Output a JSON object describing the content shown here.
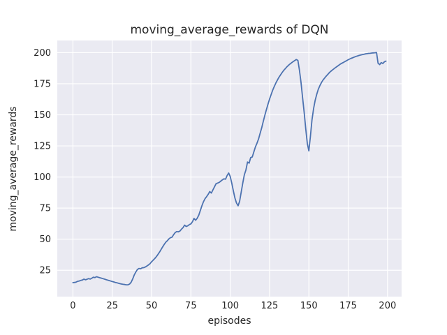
{
  "chart_data": {
    "type": "line",
    "title": "moving_average_rewards of DQN",
    "xlabel": "episodes",
    "ylabel": "moving_average_rewards",
    "xlim": [
      -9.95,
      208.95
    ],
    "ylim": [
      3.8,
      209.8
    ],
    "xticks": [
      0,
      25,
      50,
      75,
      100,
      125,
      150,
      175,
      200
    ],
    "yticks": [
      25,
      50,
      75,
      100,
      125,
      150,
      175,
      200
    ],
    "grid": true,
    "legend": "none",
    "style": {
      "line_color": "#4c72b0",
      "plot_background": "#eaeaf2",
      "grid_color": "#ffffff",
      "text_color": "#262626",
      "figure_background": "#ffffff",
      "line_width": 1.8
    },
    "series": [
      {
        "name": "moving_average_rewards",
        "points": [
          [
            0,
            15
          ],
          [
            1,
            15.2
          ],
          [
            2,
            15.5
          ],
          [
            3,
            16.1
          ],
          [
            4,
            16.4
          ],
          [
            5,
            16.8
          ],
          [
            6,
            17.1
          ],
          [
            7,
            17.9
          ],
          [
            8,
            17.3
          ],
          [
            9,
            17.8
          ],
          [
            10,
            18.3
          ],
          [
            11,
            17.9
          ],
          [
            12,
            18.6
          ],
          [
            13,
            19.4
          ],
          [
            14,
            19.1
          ],
          [
            15,
            19.8
          ],
          [
            16,
            19.4
          ],
          [
            17,
            19
          ],
          [
            18,
            18.7
          ],
          [
            19,
            18.3
          ],
          [
            20,
            17.9
          ],
          [
            21,
            17.5
          ],
          [
            22,
            17.1
          ],
          [
            23,
            16.7
          ],
          [
            24,
            16.3
          ],
          [
            25,
            15.9
          ],
          [
            26,
            15.6
          ],
          [
            27,
            15.2
          ],
          [
            28,
            14.9
          ],
          [
            29,
            14.5
          ],
          [
            30,
            14.2
          ],
          [
            31,
            13.9
          ],
          [
            32,
            13.7
          ],
          [
            33,
            13.5
          ],
          [
            34,
            13.3
          ],
          [
            35,
            13.3
          ],
          [
            36,
            13.9
          ],
          [
            37,
            15.3
          ],
          [
            38,
            18
          ],
          [
            39,
            21.2
          ],
          [
            40,
            23.6
          ],
          [
            41,
            25.6
          ],
          [
            42,
            26.5
          ],
          [
            43,
            26.2
          ],
          [
            44,
            27
          ],
          [
            45,
            27.1
          ],
          [
            46,
            27.6
          ],
          [
            47,
            28.4
          ],
          [
            48,
            29.3
          ],
          [
            49,
            30.3
          ],
          [
            50,
            31.8
          ],
          [
            51,
            33.1
          ],
          [
            52,
            34.4
          ],
          [
            53,
            35.9
          ],
          [
            54,
            37.6
          ],
          [
            55,
            39.5
          ],
          [
            56,
            41.6
          ],
          [
            57,
            43.7
          ],
          [
            58,
            45.7
          ],
          [
            59,
            47.5
          ],
          [
            60,
            48.7
          ],
          [
            61,
            50.2
          ],
          [
            62,
            51.2
          ],
          [
            63,
            51.6
          ],
          [
            64,
            53.6
          ],
          [
            65,
            55.3
          ],
          [
            66,
            56.1
          ],
          [
            67,
            55.9
          ],
          [
            68,
            56.5
          ],
          [
            69,
            58
          ],
          [
            70,
            59.3
          ],
          [
            71,
            61.3
          ],
          [
            72,
            60.2
          ],
          [
            73,
            60.7
          ],
          [
            74,
            61.7
          ],
          [
            75,
            62.3
          ],
          [
            76,
            64.1
          ],
          [
            77,
            66.7
          ],
          [
            78,
            65.2
          ],
          [
            79,
            66.8
          ],
          [
            80,
            69.3
          ],
          [
            81,
            73
          ],
          [
            82,
            76.9
          ],
          [
            83,
            80.1
          ],
          [
            84,
            82.6
          ],
          [
            85,
            84.2
          ],
          [
            86,
            86.1
          ],
          [
            87,
            88.3
          ],
          [
            88,
            87.1
          ],
          [
            89,
            89.7
          ],
          [
            90,
            92.1
          ],
          [
            91,
            94.6
          ],
          [
            92,
            95.1
          ],
          [
            93,
            95.7
          ],
          [
            94,
            96.7
          ],
          [
            95,
            97.7
          ],
          [
            96,
            98.5
          ],
          [
            97,
            98.2
          ],
          [
            98,
            101.1
          ],
          [
            99,
            103.2
          ],
          [
            100,
            100.4
          ],
          [
            101,
            94.9
          ],
          [
            102,
            88.9
          ],
          [
            103,
            83
          ],
          [
            104,
            79.1
          ],
          [
            105,
            76.9
          ],
          [
            106,
            80.5
          ],
          [
            107,
            88
          ],
          [
            108,
            95.1
          ],
          [
            109,
            101.9
          ],
          [
            110,
            105.6
          ],
          [
            111,
            112
          ],
          [
            112,
            111.1
          ],
          [
            113,
            115.6
          ],
          [
            114,
            116.1
          ],
          [
            115,
            120.1
          ],
          [
            116,
            124.2
          ],
          [
            117,
            127.1
          ],
          [
            118,
            130.6
          ],
          [
            119,
            135.1
          ],
          [
            120,
            139.6
          ],
          [
            121,
            144.6
          ],
          [
            122,
            149.6
          ],
          [
            123,
            154.1
          ],
          [
            124,
            158.6
          ],
          [
            125,
            162.6
          ],
          [
            126,
            166.3
          ],
          [
            127,
            169.8
          ],
          [
            128,
            172.8
          ],
          [
            129,
            175.5
          ],
          [
            130,
            178
          ],
          [
            131,
            180.2
          ],
          [
            132,
            182.2
          ],
          [
            133,
            184
          ],
          [
            134,
            185.7
          ],
          [
            135,
            187.2
          ],
          [
            136,
            188.6
          ],
          [
            137,
            189.8
          ],
          [
            138,
            190.9
          ],
          [
            139,
            191.9
          ],
          [
            140,
            192.8
          ],
          [
            141,
            193.7
          ],
          [
            142,
            194.5
          ],
          [
            143,
            193.8
          ],
          [
            144,
            186
          ],
          [
            145,
            176
          ],
          [
            146,
            164
          ],
          [
            147,
            152
          ],
          [
            148,
            139
          ],
          [
            149,
            127
          ],
          [
            150,
            121
          ],
          [
            151,
            133
          ],
          [
            152,
            146
          ],
          [
            153,
            155
          ],
          [
            154,
            161.5
          ],
          [
            155,
            166.5
          ],
          [
            156,
            170.5
          ],
          [
            157,
            173.5
          ],
          [
            158,
            176
          ],
          [
            159,
            178
          ],
          [
            160,
            179.6
          ],
          [
            161,
            181.1
          ],
          [
            162,
            182.5
          ],
          [
            163,
            183.9
          ],
          [
            164,
            185.1
          ],
          [
            165,
            186.1
          ],
          [
            166,
            187.1
          ],
          [
            167,
            188.1
          ],
          [
            168,
            189
          ],
          [
            169,
            189.9
          ],
          [
            170,
            190.8
          ],
          [
            171,
            191.5
          ],
          [
            172,
            192.2
          ],
          [
            173,
            192.9
          ],
          [
            174,
            193.6
          ],
          [
            175,
            194.3
          ],
          [
            176,
            194.9
          ],
          [
            177,
            195.5
          ],
          [
            178,
            196
          ],
          [
            179,
            196.5
          ],
          [
            180,
            197
          ],
          [
            181,
            197.4
          ],
          [
            182,
            197.8
          ],
          [
            183,
            198.1
          ],
          [
            184,
            198.4
          ],
          [
            185,
            198.7
          ],
          [
            186,
            199
          ],
          [
            187,
            199.2
          ],
          [
            188,
            199.4
          ],
          [
            189,
            199.5
          ],
          [
            190,
            199.7
          ],
          [
            191,
            199.8
          ],
          [
            192,
            199.9
          ],
          [
            193,
            200.1
          ],
          [
            194,
            191.5
          ],
          [
            195,
            190.4
          ],
          [
            196,
            192
          ],
          [
            197,
            191.3
          ],
          [
            198,
            192.6
          ],
          [
            199,
            193.2
          ]
        ]
      }
    ]
  }
}
